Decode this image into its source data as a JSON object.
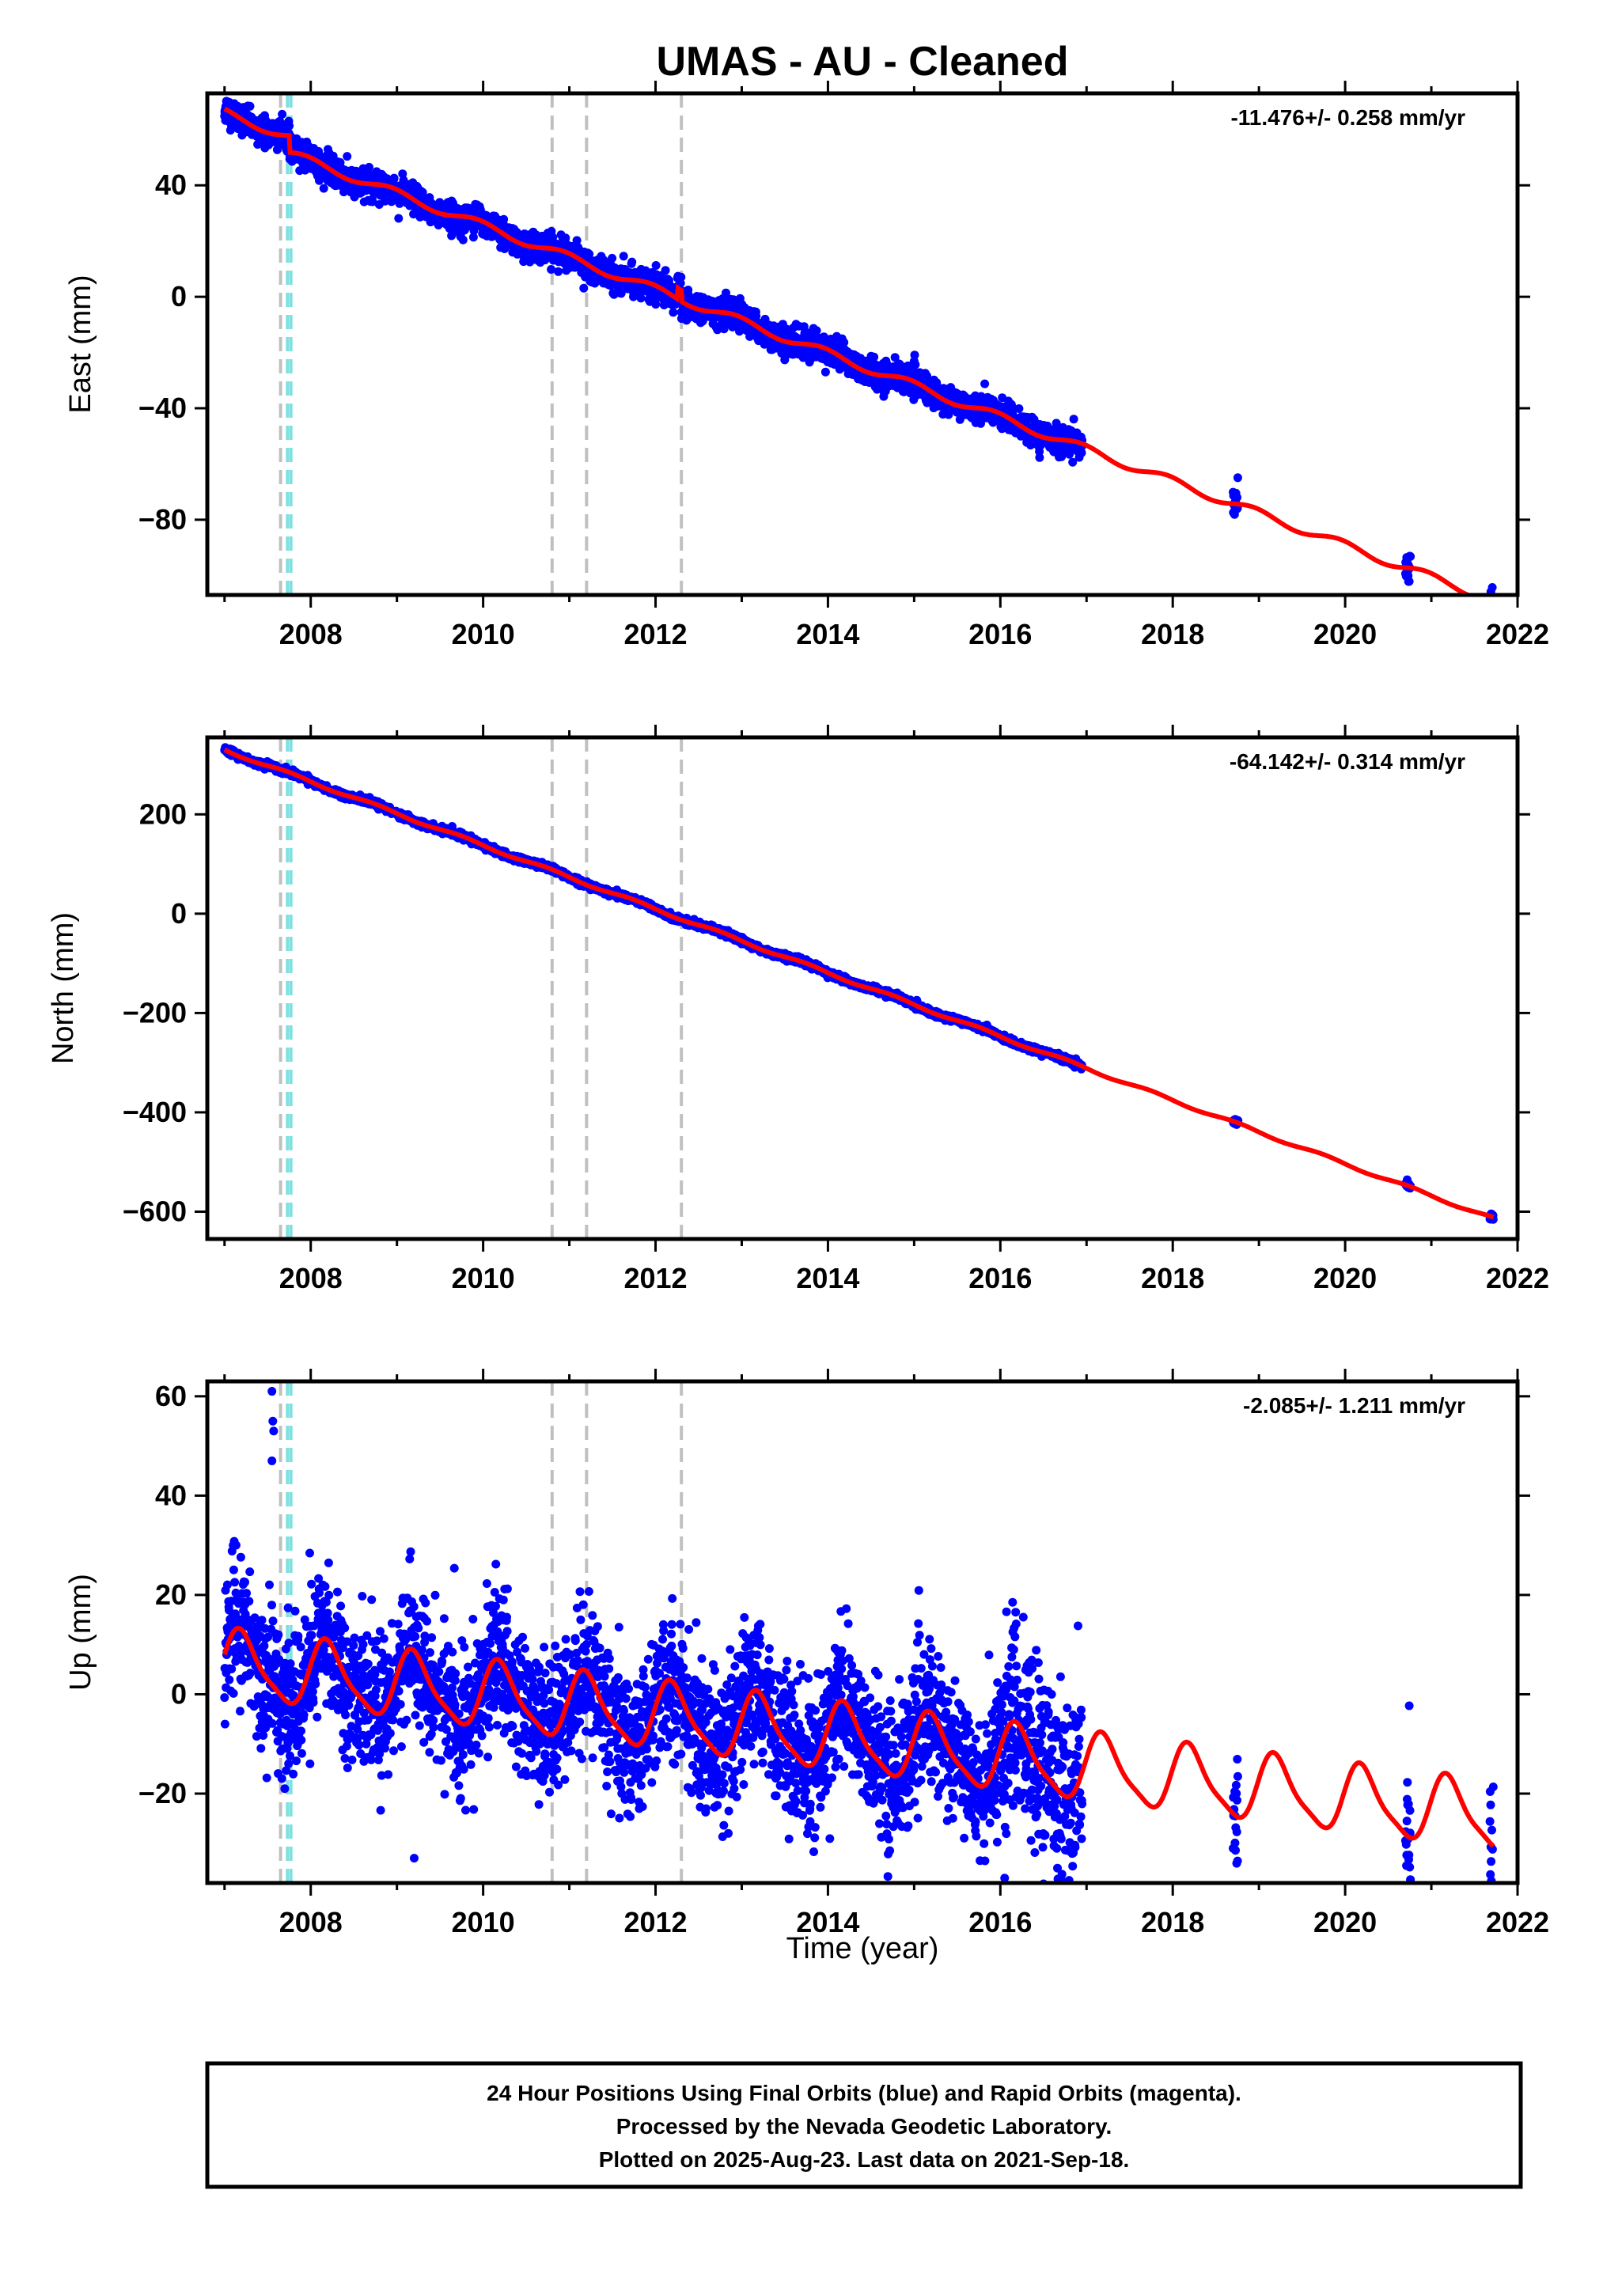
{
  "title": "UMAS  - AU - Cleaned",
  "colors": {
    "data_points": "#0000ff",
    "model_line": "#ff0000",
    "gray_marker": "#c0c0c0",
    "cyan_marker": "#7fe0e0"
  },
  "footer": {
    "line1": "24 Hour Positions Using Final Orbits (blue) and Rapid Orbits (magenta).",
    "line2": "Processed by the Nevada Geodetic Laboratory.",
    "line3": "Plotted on 2025-Aug-23. Last data on 2021-Sep-18."
  },
  "xlabel": "Time (year)",
  "chart_data": [
    {
      "type": "scatter",
      "component": "east",
      "ylabel": "East (mm)",
      "rate": "-11.476+/- 0.258 mm/yr",
      "xlim": [
        2006.8,
        2022.0
      ],
      "ylim": [
        -107,
        73
      ],
      "xticks": [
        2008,
        2010,
        2012,
        2014,
        2016,
        2018,
        2020,
        2022
      ],
      "yticks": [
        40,
        0,
        -40,
        -80
      ],
      "ytick_labels": [
        "40",
        "0",
        "−40",
        "−80"
      ],
      "model": {
        "start": 2007.0,
        "end": 2021.72,
        "offset": 66,
        "rate": -11.476,
        "annual_amp": 1.5,
        "annual_phase": 0.3,
        "steps": [
          {
            "t": 2007.75,
            "dy": -6
          },
          {
            "t": 2012.25,
            "dy": 4
          },
          {
            "t": 2012.3,
            "dy": -4
          }
        ]
      },
      "noise": 2.5,
      "segments": [
        [
          2007.0,
          2016.95
        ],
        [
          2018.7,
          2018.76
        ],
        [
          2020.7,
          2020.76
        ],
        [
          2021.68,
          2021.72
        ]
      ],
      "outliers": []
    },
    {
      "type": "scatter",
      "component": "north",
      "ylabel": "North (mm)",
      "rate": "-64.142+/- 0.314 mm/yr",
      "xlim": [
        2006.8,
        2022.0
      ],
      "ylim": [
        -655,
        355
      ],
      "xticks": [
        2008,
        2010,
        2012,
        2014,
        2016,
        2018,
        2020,
        2022
      ],
      "yticks": [
        200,
        0,
        -200,
        -400,
        -600
      ],
      "ytick_labels": [
        "200",
        "0",
        "−200",
        "−400",
        "−600"
      ],
      "model": {
        "start": 2007.0,
        "end": 2021.72,
        "offset": 330,
        "rate": -64.142,
        "annual_amp": 3,
        "annual_phase": 0.5,
        "steps": []
      },
      "noise": 3,
      "segments": [
        [
          2007.0,
          2016.95
        ],
        [
          2018.7,
          2018.76
        ],
        [
          2020.7,
          2020.76
        ],
        [
          2021.68,
          2021.72
        ]
      ],
      "outliers": []
    },
    {
      "type": "scatter",
      "component": "up",
      "ylabel": "Up (mm)",
      "rate": "-2.085+/- 1.211 mm/yr",
      "xlim": [
        2006.8,
        2022.0
      ],
      "ylim": [
        -38,
        63
      ],
      "xticks": [
        2008,
        2010,
        2012,
        2014,
        2016,
        2018,
        2020,
        2022
      ],
      "yticks": [
        60,
        40,
        20,
        0,
        -20
      ],
      "ytick_labels": [
        "60",
        "40",
        "20",
        "0",
        "−20"
      ],
      "model": {
        "start": 2007.0,
        "end": 2021.72,
        "offset": 6,
        "rate": -2.085,
        "annual_amp": 6.5,
        "annual_phase": 0.05,
        "steps": []
      },
      "noise": 7,
      "segments": [
        [
          2007.0,
          2016.95
        ],
        [
          2018.7,
          2018.76
        ],
        [
          2020.7,
          2020.76
        ],
        [
          2021.68,
          2021.72
        ]
      ],
      "outliers": [
        [
          2007.55,
          61
        ],
        [
          2007.56,
          55
        ],
        [
          2007.57,
          53
        ],
        [
          2007.55,
          47
        ],
        [
          2007.1,
          30
        ],
        [
          2009.2,
          -33
        ],
        [
          2016.05,
          -37
        ]
      ]
    }
  ],
  "markers": {
    "gray": [
      2007.65,
      2010.8,
      2011.2,
      2012.3
    ],
    "cyan": [
      2007.73,
      2007.77
    ]
  }
}
